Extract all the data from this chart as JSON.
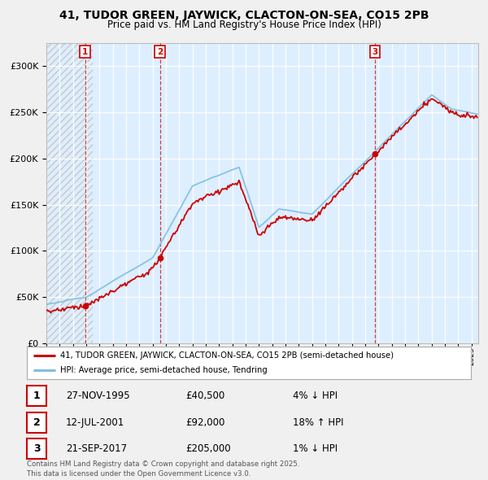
{
  "title_line1": "41, TUDOR GREEN, JAYWICK, CLACTON-ON-SEA, CO15 2PB",
  "title_line2": "Price paid vs. HM Land Registry's House Price Index (HPI)",
  "ylim": [
    0,
    325000
  ],
  "yticks": [
    0,
    50000,
    100000,
    150000,
    200000,
    250000,
    300000
  ],
  "ytick_labels": [
    "£0",
    "£50K",
    "£100K",
    "£150K",
    "£200K",
    "£250K",
    "£300K"
  ],
  "legend_entry1": "41, TUDOR GREEN, JAYWICK, CLACTON-ON-SEA, CO15 2PB (semi-detached house)",
  "legend_entry2": "HPI: Average price, semi-detached house, Tendring",
  "sales": [
    {
      "num": 1,
      "date": "27-NOV-1995",
      "price": 40500,
      "pct": "4%",
      "dir": "↓",
      "x_year": 1995.91
    },
    {
      "num": 2,
      "date": "12-JUL-2001",
      "price": 92000,
      "pct": "18%",
      "dir": "↑",
      "x_year": 2001.54
    },
    {
      "num": 3,
      "date": "21-SEP-2017",
      "price": 205000,
      "pct": "1%",
      "dir": "↓",
      "x_year": 2017.72
    }
  ],
  "footnote": "Contains HM Land Registry data © Crown copyright and database right 2025.\nThis data is licensed under the Open Government Licence v3.0.",
  "hpi_color": "#7fbfdf",
  "price_color": "#cc0000",
  "bg_color": "#f0f0f0",
  "plot_bg": "#ddeeff",
  "hatch_color": "#c8c8c8",
  "grid_color": "#cccccc",
  "xmin": 1993,
  "xmax": 2025.5
}
